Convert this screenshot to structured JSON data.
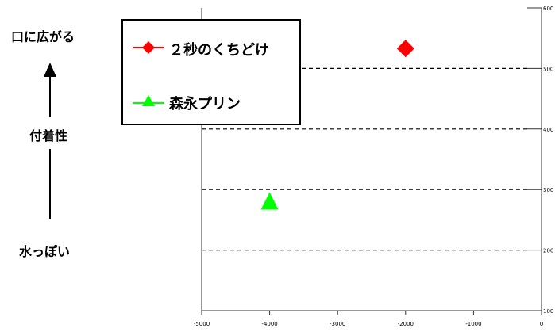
{
  "side_labels": {
    "top": "口に広がる",
    "middle": "付着性",
    "bottom": "水っぽい"
  },
  "legend": {
    "items": [
      {
        "label": "２秒のくちどけ",
        "color": "#ff0000",
        "marker": "diamond"
      },
      {
        "label": "森永プリン",
        "color": "#00ff00",
        "marker": "triangle"
      }
    ]
  },
  "chart_data": {
    "type": "scatter",
    "x_ticks": [
      "-5000",
      "-4000",
      "-3000",
      "-2000",
      "-1000",
      "0"
    ],
    "y_ticks": [
      "100",
      "200",
      "300",
      "400",
      "500",
      "600"
    ],
    "xlim": [
      -5000,
      0
    ],
    "ylim": [
      100,
      600
    ],
    "grid": "horizontal-dashed",
    "legend_placement": "top-left",
    "series": [
      {
        "name": "２秒のくちどけ",
        "marker": "diamond",
        "color": "#ff0000",
        "points": [
          {
            "x": -2000,
            "y": 533
          }
        ]
      },
      {
        "name": "森永プリン",
        "marker": "triangle",
        "color": "#00ff00",
        "points": [
          {
            "x": -4000,
            "y": 280
          }
        ]
      }
    ]
  }
}
